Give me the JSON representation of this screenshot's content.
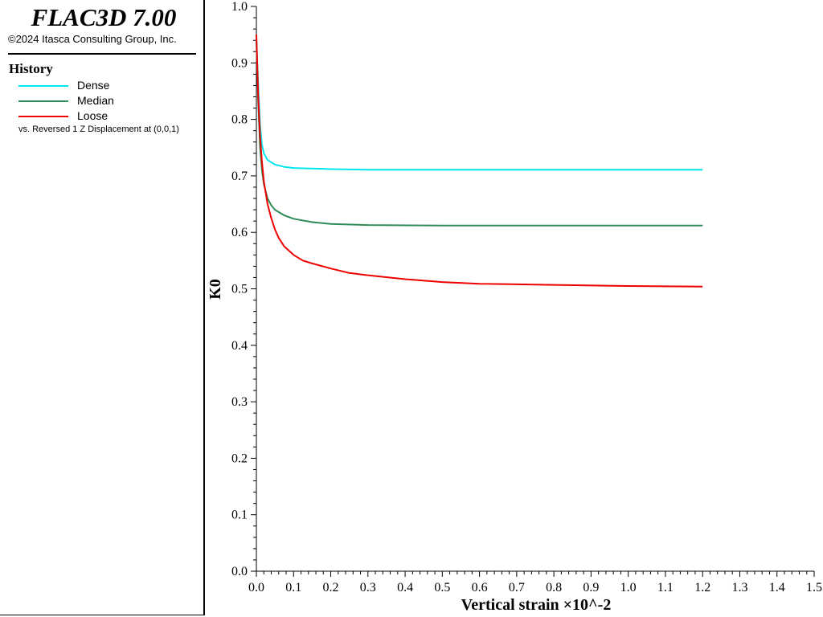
{
  "app": {
    "title": "FLAC3D 7.00",
    "copyright": "©2024 Itasca Consulting Group, Inc."
  },
  "legend": {
    "heading": "History",
    "caption": "vs. Reversed 1 Z Displacement at (0,0,1)"
  },
  "chart_data": {
    "type": "line",
    "xlabel": "Vertical strain ×10^-2",
    "ylabel": "K0",
    "xlim": [
      0.0,
      1.5
    ],
    "ylim": [
      0.0,
      1.0
    ],
    "x_ticks": [
      0.0,
      0.1,
      0.2,
      0.3,
      0.4,
      0.5,
      0.6,
      0.7,
      0.8,
      0.9,
      1.0,
      1.1,
      1.2,
      1.3,
      1.4,
      1.5
    ],
    "y_ticks": [
      0.0,
      0.1,
      0.2,
      0.3,
      0.4,
      0.5,
      0.6,
      0.7,
      0.8,
      0.9,
      1.0
    ],
    "x_tick_labels": [
      "0.0",
      "0.1",
      "0.2",
      "0.3",
      "0.4",
      "0.5",
      "0.6",
      "0.7",
      "0.8",
      "0.9",
      "1.0",
      "1.1",
      "1.2",
      "1.3",
      "1.4",
      "1.5"
    ],
    "y_tick_labels": [
      "0.0",
      "0.1",
      "0.2",
      "0.3",
      "0.4",
      "0.5",
      "0.6",
      "0.7",
      "0.8",
      "0.9",
      "1.0"
    ],
    "grid": false,
    "legend_placement": "left-panel",
    "series": [
      {
        "name": "Dense",
        "color": "#00e5ee",
        "x": [
          0.0,
          0.005,
          0.01,
          0.015,
          0.02,
          0.03,
          0.05,
          0.075,
          0.1,
          0.15,
          0.2,
          0.3,
          0.5,
          0.8,
          1.0,
          1.2
        ],
        "y": [
          0.94,
          0.86,
          0.79,
          0.755,
          0.74,
          0.728,
          0.72,
          0.716,
          0.714,
          0.713,
          0.712,
          0.711,
          0.711,
          0.711,
          0.711,
          0.711
        ]
      },
      {
        "name": "Median",
        "color": "#2e8b57",
        "x": [
          0.0,
          0.005,
          0.01,
          0.015,
          0.02,
          0.03,
          0.04,
          0.05,
          0.075,
          0.1,
          0.15,
          0.2,
          0.3,
          0.5,
          0.8,
          1.0,
          1.2
        ],
        "y": [
          0.94,
          0.83,
          0.75,
          0.71,
          0.685,
          0.66,
          0.648,
          0.64,
          0.63,
          0.624,
          0.618,
          0.615,
          0.613,
          0.612,
          0.612,
          0.612,
          0.612
        ]
      },
      {
        "name": "Loose",
        "color": "#ee0000",
        "x": [
          0.0,
          0.005,
          0.01,
          0.015,
          0.02,
          0.03,
          0.04,
          0.05,
          0.06,
          0.075,
          0.1,
          0.125,
          0.15,
          0.2,
          0.25,
          0.3,
          0.4,
          0.5,
          0.6,
          0.8,
          1.0,
          1.2
        ],
        "y": [
          0.95,
          0.84,
          0.77,
          0.725,
          0.69,
          0.65,
          0.625,
          0.605,
          0.59,
          0.575,
          0.56,
          0.55,
          0.545,
          0.536,
          0.528,
          0.524,
          0.517,
          0.512,
          0.509,
          0.507,
          0.505,
          0.504
        ]
      }
    ]
  }
}
